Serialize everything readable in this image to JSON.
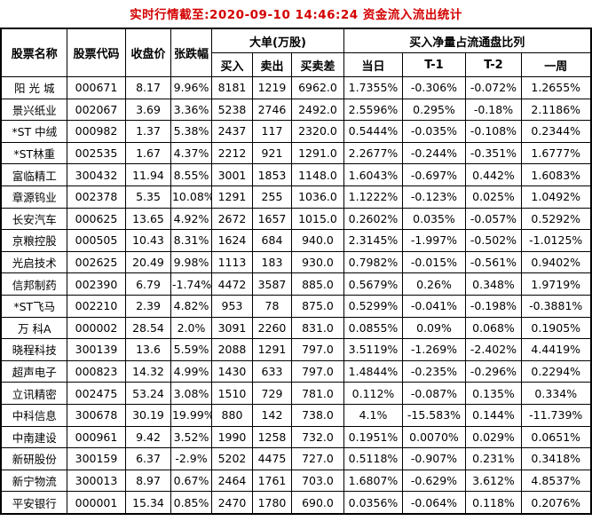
{
  "title": "实时行情截至:2020-09-10 14:46:24 资金流入流出统计",
  "colors": {
    "title_red": "#d40000",
    "stock_blue": "#1f5c99",
    "border_black": "#000000",
    "background": "#ffffff"
  },
  "table": {
    "headers": {
      "stock_name": "股票名称",
      "stock_code": "股票代码",
      "close": "收盘价",
      "change": "张跌幅",
      "big_orders_group": "大单(万股)",
      "buy": "买入",
      "sell": "卖出",
      "diff": "买卖差",
      "net_ratio_group": "买入净量占流通盘比列",
      "today": "当日",
      "t1": "T-1",
      "t2": "T-2",
      "week": "一周"
    }
  },
  "chart_data": {
    "type": "table",
    "title": "实时行情截至:2020-09-10 14:46:24 资金流入流出统计",
    "column_groups": [
      {
        "label": "大单(万股)",
        "columns": [
          "买入",
          "卖出",
          "买卖差"
        ]
      },
      {
        "label": "买入净量占流通盘比列",
        "columns": [
          "当日",
          "T-1",
          "T-2",
          "一周"
        ]
      }
    ],
    "columns": [
      "股票名称",
      "股票代码",
      "收盘价",
      "张跌幅",
      "买入",
      "卖出",
      "买卖差",
      "当日",
      "T-1",
      "T-2",
      "一周"
    ],
    "rows": [
      [
        "阳 光 城",
        "000671",
        "8.17",
        "9.96%",
        "8181",
        "1219",
        "6962.0",
        "1.7355%",
        "-0.306%",
        "-0.072%",
        "1.2655%"
      ],
      [
        "景兴纸业",
        "002067",
        "3.69",
        "3.36%",
        "5238",
        "2746",
        "2492.0",
        "2.5596%",
        "0.295%",
        "-0.18%",
        "2.1186%"
      ],
      [
        "*ST 中绒",
        "000982",
        "1.37",
        "5.38%",
        "2437",
        "117",
        "2320.0",
        "0.5444%",
        "-0.035%",
        "-0.108%",
        "0.2344%"
      ],
      [
        "*ST林重",
        "002535",
        "1.67",
        "4.37%",
        "2212",
        "921",
        "1291.0",
        "2.2677%",
        "-0.244%",
        "-0.351%",
        "1.6777%"
      ],
      [
        "富临精工",
        "300432",
        "11.94",
        "8.55%",
        "3001",
        "1853",
        "1148.0",
        "1.6043%",
        "-0.697%",
        "0.442%",
        "1.6083%"
      ],
      [
        "章源钨业",
        "002378",
        "5.35",
        "10.08%",
        "1291",
        "255",
        "1036.0",
        "1.1222%",
        "-0.123%",
        "0.025%",
        "1.0492%"
      ],
      [
        "长安汽车",
        "000625",
        "13.65",
        "4.92%",
        "2672",
        "1657",
        "1015.0",
        "0.2602%",
        "0.035%",
        "-0.057%",
        "0.5292%"
      ],
      [
        "京粮控股",
        "000505",
        "10.43",
        "8.31%",
        "1624",
        "684",
        "940.0",
        "2.3145%",
        "-1.997%",
        "-0.502%",
        "-1.0125%"
      ],
      [
        "光启技术",
        "002625",
        "20.49",
        "9.98%",
        "1113",
        "183",
        "930.0",
        "0.7982%",
        "-0.015%",
        "-0.561%",
        "0.9402%"
      ],
      [
        "信邦制药",
        "002390",
        "6.79",
        "-1.74%",
        "4472",
        "3587",
        "885.0",
        "0.5679%",
        "0.26%",
        "0.348%",
        "1.9719%"
      ],
      [
        "*ST飞马",
        "002210",
        "2.39",
        "4.82%",
        "953",
        "78",
        "875.0",
        "0.5299%",
        "-0.041%",
        "-0.198%",
        "-0.3881%"
      ],
      [
        "万 科A",
        "000002",
        "28.54",
        "2.0%",
        "3091",
        "2260",
        "831.0",
        "0.0855%",
        "0.09%",
        "0.068%",
        "0.1905%"
      ],
      [
        "晓程科技",
        "300139",
        "13.6",
        "5.59%",
        "2088",
        "1291",
        "797.0",
        "3.5119%",
        "-1.269%",
        "-2.402%",
        "4.4419%"
      ],
      [
        "超声电子",
        "000823",
        "14.32",
        "4.99%",
        "1430",
        "633",
        "797.0",
        "1.4844%",
        "-0.235%",
        "-0.296%",
        "0.2294%"
      ],
      [
        "立讯精密",
        "002475",
        "53.24",
        "3.08%",
        "1510",
        "729",
        "781.0",
        "0.112%",
        "-0.087%",
        "0.135%",
        "0.334%"
      ],
      [
        "中科信息",
        "300678",
        "30.19",
        "19.99%",
        "880",
        "142",
        "738.0",
        "4.1%",
        "-15.583%",
        "0.144%",
        "-11.739%"
      ],
      [
        "中南建设",
        "000961",
        "9.42",
        "3.52%",
        "1990",
        "1258",
        "732.0",
        "0.1951%",
        "0.0070%",
        "0.029%",
        "0.0651%"
      ],
      [
        "新研股份",
        "300159",
        "6.37",
        "-2.9%",
        "5202",
        "4475",
        "727.0",
        "0.5118%",
        "-0.907%",
        "0.231%",
        "0.3418%"
      ],
      [
        "新宁物流",
        "300013",
        "8.97",
        "0.67%",
        "2464",
        "1761",
        "703.0",
        "1.6807%",
        "-0.629%",
        "3.612%",
        "4.8537%"
      ],
      [
        "平安银行",
        "000001",
        "15.34",
        "0.85%",
        "2470",
        "1780",
        "690.0",
        "0.0356%",
        "-0.064%",
        "0.118%",
        "0.2076%"
      ]
    ]
  }
}
